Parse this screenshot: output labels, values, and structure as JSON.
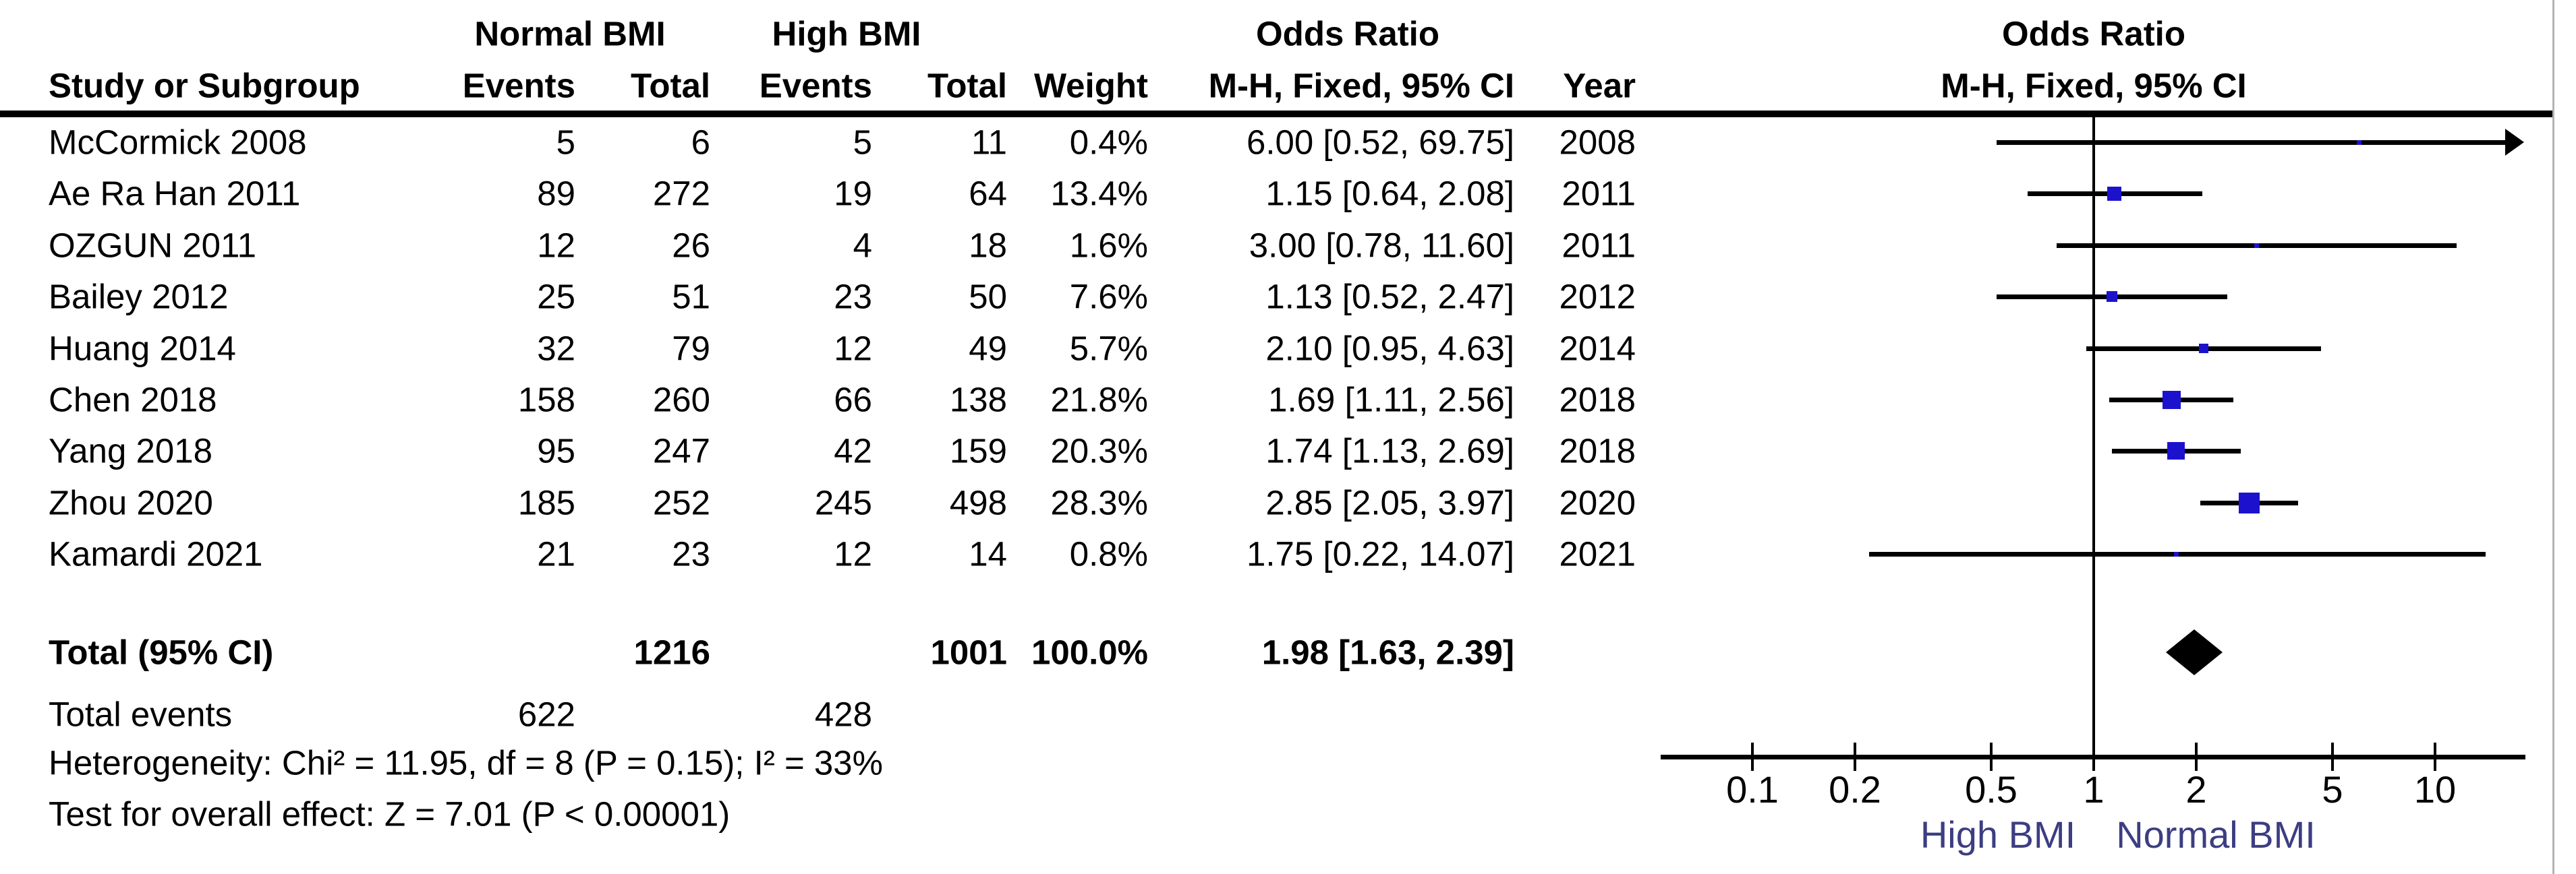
{
  "table": {
    "group_headers": {
      "normal_bmi": "Normal BMI",
      "high_bmi": "High BMI",
      "odds_ratio": "Odds Ratio"
    },
    "column_headers": {
      "study": "Study or Subgroup",
      "events_normal": "Events",
      "total_normal": "Total",
      "events_high": "Events",
      "total_high": "Total",
      "weight": "Weight",
      "mh_fixed_ci": "M-H, Fixed, 95% CI",
      "year": "Year"
    },
    "rows": [
      {
        "study": "McCormick 2008",
        "events_normal": "5",
        "total_normal": "6",
        "events_high": "5",
        "total_high": "11",
        "weight": "0.4%",
        "or_ci": "6.00 [0.52, 69.75]",
        "year": "2008"
      },
      {
        "study": "Ae Ra Han 2011",
        "events_normal": "89",
        "total_normal": "272",
        "events_high": "19",
        "total_high": "64",
        "weight": "13.4%",
        "or_ci": "1.15 [0.64, 2.08]",
        "year": "2011"
      },
      {
        "study": "OZGUN 2011",
        "events_normal": "12",
        "total_normal": "26",
        "events_high": "4",
        "total_high": "18",
        "weight": "1.6%",
        "or_ci": "3.00 [0.78, 11.60]",
        "year": "2011"
      },
      {
        "study": "Bailey 2012",
        "events_normal": "25",
        "total_normal": "51",
        "events_high": "23",
        "total_high": "50",
        "weight": "7.6%",
        "or_ci": "1.13 [0.52, 2.47]",
        "year": "2012"
      },
      {
        "study": "Huang 2014",
        "events_normal": "32",
        "total_normal": "79",
        "events_high": "12",
        "total_high": "49",
        "weight": "5.7%",
        "or_ci": "2.10 [0.95, 4.63]",
        "year": "2014"
      },
      {
        "study": "Chen 2018",
        "events_normal": "158",
        "total_normal": "260",
        "events_high": "66",
        "total_high": "138",
        "weight": "21.8%",
        "or_ci": "1.69 [1.11, 2.56]",
        "year": "2018"
      },
      {
        "study": "Yang 2018",
        "events_normal": "95",
        "total_normal": "247",
        "events_high": "42",
        "total_high": "159",
        "weight": "20.3%",
        "or_ci": "1.74 [1.13, 2.69]",
        "year": "2018"
      },
      {
        "study": "Zhou 2020",
        "events_normal": "185",
        "total_normal": "252",
        "events_high": "245",
        "total_high": "498",
        "weight": "28.3%",
        "or_ci": "2.85 [2.05, 3.97]",
        "year": "2020"
      },
      {
        "study": "Kamardi 2021",
        "events_normal": "21",
        "total_normal": "23",
        "events_high": "12",
        "total_high": "14",
        "weight": "0.8%",
        "or_ci": "1.75 [0.22, 14.07]",
        "year": "2021"
      }
    ],
    "total_row": {
      "label": "Total (95% CI)",
      "total_normal": "1216",
      "total_high": "1001",
      "weight": "100.0%",
      "or_ci": "1.98 [1.63, 2.39]"
    },
    "total_events_row": {
      "label": "Total events",
      "events_normal": "622",
      "events_high": "428"
    },
    "heterogeneity_text": "Heterogeneity: Chi² = 11.95, df = 8 (P = 0.15); I² = 33%",
    "overall_effect_text": "Test for overall effect: Z = 7.01 (P < 0.00001)"
  },
  "plot": {
    "header_line1": "Odds Ratio",
    "header_line2": "M-H, Fixed, 95% CI",
    "tick_labels": [
      "0.1",
      "0.2",
      "0.5",
      "1",
      "2",
      "5",
      "10"
    ],
    "axis_label_left": "High BMI",
    "axis_label_right": "Normal BMI"
  },
  "colors": {
    "marker_blue": "#1c12cd",
    "diamond_black": "#000000",
    "line_black": "#000000",
    "axis_sublabel_navy": "#3d3d82",
    "figure_border_gray": "#b3b3b3"
  },
  "chart_data": {
    "type": "scatter",
    "subtype": "forest-plot",
    "title": "Odds Ratio, M-H, Fixed, 95% CI",
    "x_scale": "log10",
    "x_ticks": [
      0.1,
      0.2,
      0.5,
      1,
      2,
      5,
      10
    ],
    "x_axis_range": [
      0.054,
      18.5
    ],
    "null_line": 1,
    "direction_labels": {
      "left": "High BMI",
      "right": "Normal BMI"
    },
    "studies": [
      {
        "name": "McCormick 2008",
        "or": 6.0,
        "ci_low": 0.52,
        "ci_high": 69.75,
        "weight_pct": 0.4,
        "year": 2008
      },
      {
        "name": "Ae Ra Han 2011",
        "or": 1.15,
        "ci_low": 0.64,
        "ci_high": 2.08,
        "weight_pct": 13.4,
        "year": 2011
      },
      {
        "name": "OZGUN 2011",
        "or": 3.0,
        "ci_low": 0.78,
        "ci_high": 11.6,
        "weight_pct": 1.6,
        "year": 2011
      },
      {
        "name": "Bailey 2012",
        "or": 1.13,
        "ci_low": 0.52,
        "ci_high": 2.47,
        "weight_pct": 7.6,
        "year": 2012
      },
      {
        "name": "Huang 2014",
        "or": 2.1,
        "ci_low": 0.95,
        "ci_high": 4.63,
        "weight_pct": 5.7,
        "year": 2014
      },
      {
        "name": "Chen 2018",
        "or": 1.69,
        "ci_low": 1.11,
        "ci_high": 2.56,
        "weight_pct": 21.8,
        "year": 2018
      },
      {
        "name": "Yang 2018",
        "or": 1.74,
        "ci_low": 1.13,
        "ci_high": 2.69,
        "weight_pct": 20.3,
        "year": 2018
      },
      {
        "name": "Zhou 2020",
        "or": 2.85,
        "ci_low": 2.05,
        "ci_high": 3.97,
        "weight_pct": 28.3,
        "year": 2020
      },
      {
        "name": "Kamardi 2021",
        "or": 1.75,
        "ci_low": 0.22,
        "ci_high": 14.07,
        "weight_pct": 0.8,
        "year": 2021
      }
    ],
    "summary": {
      "label": "Total (95% CI)",
      "or": 1.98,
      "ci_low": 1.63,
      "ci_high": 2.39,
      "weight_pct": 100.0
    },
    "totals": {
      "normal_total": 1216,
      "high_total": 1001,
      "normal_events": 622,
      "high_events": 428
    },
    "heterogeneity": {
      "chi2": 11.95,
      "df": 8,
      "p": 0.15,
      "i2_pct": 33
    },
    "overall_effect": {
      "z": 7.01,
      "p": "< 0.00001"
    }
  }
}
